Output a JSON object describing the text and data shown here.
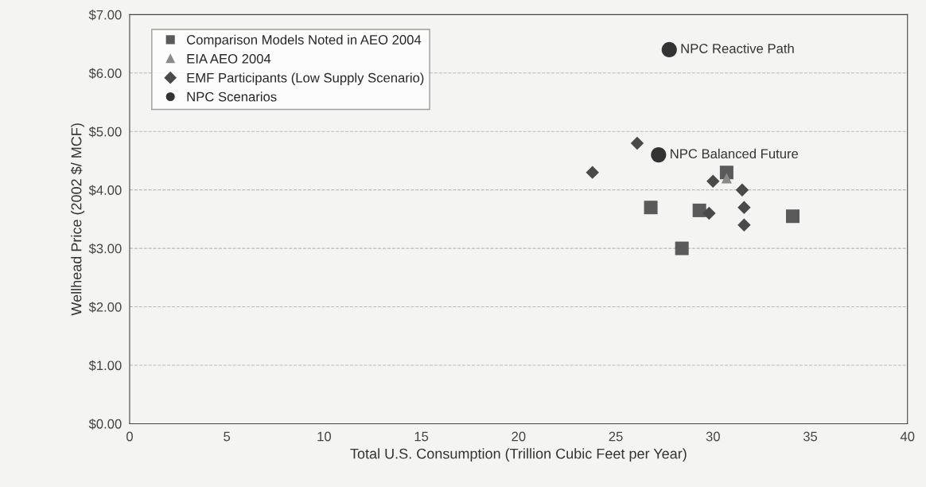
{
  "chart_data": {
    "type": "scatter",
    "xlabel": "Total U.S. Consumption (Trillion Cubic Feet per Year)",
    "ylabel": "Wellhead Price (2002 $/ MCF)",
    "xlim": [
      0,
      40
    ],
    "xticks": [
      0,
      5,
      10,
      15,
      20,
      25,
      30,
      35,
      40
    ],
    "ylim": [
      0,
      7
    ],
    "yticks": [
      {
        "value": 0,
        "label": "$0.00"
      },
      {
        "value": 1,
        "label": "$1.00"
      },
      {
        "value": 2,
        "label": "$2.00"
      },
      {
        "value": 3,
        "label": "$3.00"
      },
      {
        "value": 4,
        "label": "$4.00"
      },
      {
        "value": 5,
        "label": "$5.00"
      },
      {
        "value": 6,
        "label": "$6.00"
      },
      {
        "value": 7,
        "label": "$7.00"
      }
    ],
    "grid": "y",
    "legend": "top left",
    "series": [
      {
        "name": "Comparison Models Noted in AEO 2004",
        "color": "#5a5a5a",
        "marker": "square",
        "x": [
          26.8,
          29.3,
          30.7,
          28.4,
          34.1
        ],
        "values": [
          3.7,
          3.65,
          4.3,
          3.0,
          3.55
        ]
      },
      {
        "name": "EIA AEO 2004",
        "color": "#8a8a8a",
        "marker": "triangle",
        "x": [
          30.7
        ],
        "values": [
          4.2
        ]
      },
      {
        "name": "EMF Participants (Low Supply Scenario)",
        "color": "#4a4a4a",
        "marker": "diamond",
        "x": [
          23.8,
          26.1,
          30.0,
          31.5,
          31.6,
          31.6,
          29.8
        ],
        "values": [
          4.3,
          4.8,
          4.15,
          4.0,
          3.7,
          3.4,
          3.6
        ]
      },
      {
        "name": "NPC Scenarios",
        "color": "#333333",
        "marker": "circle",
        "x": [
          27.75,
          27.2
        ],
        "values": [
          6.4,
          4.6
        ]
      }
    ],
    "annotations": [
      {
        "text": "NPC Reactive Path",
        "x": 27.75,
        "y": 6.4
      },
      {
        "text": "NPC Balanced Future",
        "x": 27.2,
        "y": 4.6
      }
    ]
  }
}
